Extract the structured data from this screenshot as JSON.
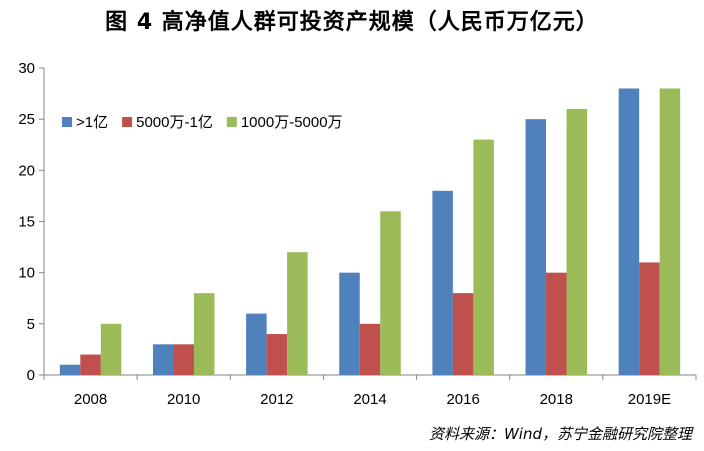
{
  "title": "图 4  高净值人群可投资产规模（人民币万亿元）",
  "source": "资料来源：Wind，苏宁金融研究院整理",
  "chart_data": {
    "type": "bar",
    "title": "图 4  高净值人群可投资产规模（人民币万亿元）",
    "xlabel": "",
    "ylabel": "",
    "categories": [
      "2008",
      "2010",
      "2012",
      "2014",
      "2016",
      "2018",
      "2019E"
    ],
    "ylim": [
      0,
      30
    ],
    "yticks": [
      0,
      5,
      10,
      15,
      20,
      25,
      30
    ],
    "grid": false,
    "legend_position": "top-left",
    "series": [
      {
        "name": ">1亿",
        "color": "#4F81BD",
        "values": [
          1,
          3,
          6,
          10,
          18,
          25,
          28
        ]
      },
      {
        "name": "5000万-1亿",
        "color": "#C0504D",
        "values": [
          2,
          3,
          4,
          5,
          8,
          10,
          11
        ]
      },
      {
        "name": "1000万-5000万",
        "color": "#9BBB59",
        "values": [
          5,
          8,
          12,
          16,
          23,
          26,
          28
        ]
      }
    ]
  }
}
